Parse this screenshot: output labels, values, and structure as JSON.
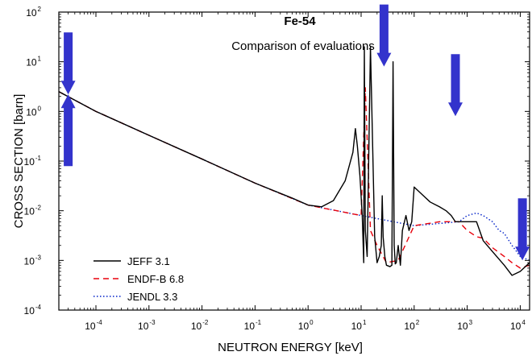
{
  "chart_data": {
    "type": "line",
    "title": "Fe-54",
    "subtitle": "Comparison of evaluations",
    "xlabel": "NEUTRON ENERGY [keV]",
    "ylabel": "CROSS SECTION [barn]",
    "xscale": "log",
    "yscale": "log",
    "xlim": [
      2e-05,
      15000
    ],
    "ylim": [
      0.0001,
      100
    ],
    "x_tick_exponents": [
      "-4",
      "-3",
      "-2",
      "-1",
      "0",
      "1",
      "2",
      "3",
      "4"
    ],
    "y_tick_exponents": [
      "-4",
      "-3",
      "-2",
      "-1",
      "0",
      "1",
      "2"
    ],
    "tick_base": "10",
    "grid": false,
    "legend_position": "bottom-left",
    "series": [
      {
        "name": "JEFF 3.1",
        "color": "#000000",
        "style": "solid",
        "x": [
          2e-05,
          0.0001,
          0.001,
          0.01,
          0.1,
          0.5,
          1.0,
          1.8,
          3.0,
          5.0,
          7.0,
          7.8,
          8.5,
          9.5,
          10.5,
          11.2,
          11.5,
          12,
          13,
          15,
          18,
          20,
          22,
          24,
          25,
          26,
          28,
          30,
          35,
          38,
          40,
          42,
          44,
          46,
          50,
          55,
          60,
          70,
          80,
          90,
          100,
          150,
          200,
          300,
          400,
          500,
          600,
          700,
          1000,
          1500,
          2000,
          3000,
          5000,
          7000,
          10000,
          15000
        ],
        "y": [
          2.5,
          1.0,
          0.33,
          0.11,
          0.036,
          0.018,
          0.013,
          0.012,
          0.016,
          0.04,
          0.15,
          0.45,
          0.2,
          0.05,
          0.008,
          0.0009,
          20,
          0.004,
          0.0012,
          20,
          0.003,
          0.0009,
          0.0012,
          0.002,
          0.02,
          0.003,
          0.0012,
          0.0008,
          0.00075,
          0.0008,
          10,
          0.002,
          0.00085,
          0.0009,
          0.002,
          0.0008,
          0.004,
          0.008,
          0.004,
          0.006,
          0.03,
          0.02,
          0.015,
          0.012,
          0.01,
          0.008,
          0.006,
          0.006,
          0.006,
          0.006,
          0.0025,
          0.0015,
          0.0008,
          0.0005,
          0.0006,
          0.0009
        ]
      },
      {
        "name": "ENDF-B 6.8",
        "color": "#e8000b",
        "style": "dashed",
        "x": [
          2e-05,
          0.0001,
          0.001,
          0.01,
          0.1,
          1.0,
          10,
          12,
          15,
          20,
          30,
          50,
          100,
          300,
          700,
          1000,
          1500,
          2000,
          3000,
          5000,
          7000,
          10000,
          15000
        ],
        "y": [
          2.5,
          1.0,
          0.33,
          0.11,
          0.036,
          0.013,
          0.008,
          3.0,
          0.004,
          0.002,
          0.0009,
          0.001,
          0.005,
          0.006,
          0.006,
          0.004,
          0.003,
          0.0028,
          0.0018,
          0.0012,
          0.0009,
          0.0007,
          0.0008
        ]
      },
      {
        "name": "JENDL 3.3",
        "color": "#0020c8",
        "style": "dotted",
        "x": [
          2e-05,
          0.0001,
          0.001,
          0.01,
          0.1,
          1.0,
          10,
          100,
          700,
          1000,
          1500,
          2000,
          3000,
          4000,
          5000,
          7000,
          10000,
          15000
        ],
        "y": [
          2.5,
          1.0,
          0.33,
          0.11,
          0.036,
          0.013,
          0.008,
          0.005,
          0.006,
          0.008,
          0.009,
          0.008,
          0.006,
          0.004,
          0.0035,
          0.002,
          0.0012,
          0.001
        ]
      }
    ],
    "annotations": [
      {
        "type": "arrow",
        "direction": "down",
        "color": "#3333cc",
        "x": 3e-05,
        "y_tip": 2.2
      },
      {
        "type": "arrow",
        "direction": "up",
        "color": "#3333cc",
        "x": 3e-05,
        "y_tip": 2.2
      },
      {
        "type": "arrow",
        "direction": "down",
        "color": "#3333cc",
        "x": 27,
        "y_tip": 8
      },
      {
        "type": "arrow",
        "direction": "down",
        "color": "#3333cc",
        "x": 600,
        "y_tip": 0.8
      },
      {
        "type": "arrow",
        "direction": "down",
        "color": "#3333cc",
        "x": 11000,
        "y_tip": 0.001
      }
    ]
  }
}
